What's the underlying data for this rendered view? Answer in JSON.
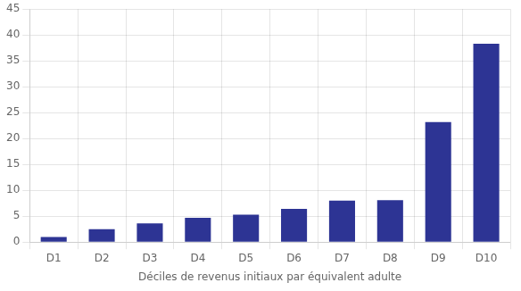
{
  "chart_data": {
    "type": "bar",
    "xlabel": "Déciles de revenus initiaux par équivalent adulte",
    "categories": [
      "D1",
      "D2",
      "D3",
      "D4",
      "D5",
      "D6",
      "D7",
      "D8",
      "D9",
      "D10"
    ],
    "values": [
      1.0,
      2.5,
      3.6,
      4.7,
      5.3,
      6.4,
      8.0,
      8.1,
      23.2,
      38.3
    ],
    "color": "#2d3494",
    "ylim": [
      0,
      45
    ],
    "yticks": [
      0,
      5,
      10,
      15,
      20,
      25,
      30,
      35,
      40,
      45
    ],
    "grid": true
  }
}
